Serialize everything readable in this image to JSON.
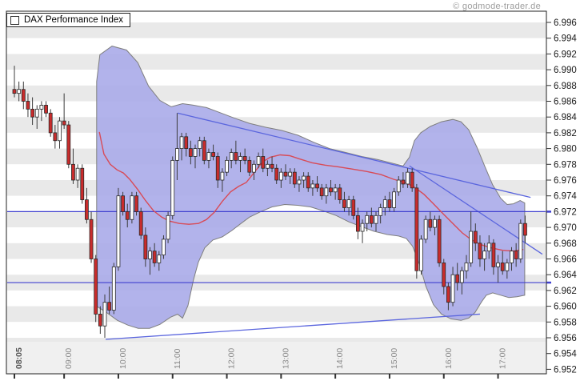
{
  "title": "DAX Performance Index",
  "watermark": "© godmode-trader.de",
  "colors": {
    "candle_up_fill": "#ffffff",
    "candle_down_fill": "#c92c2c",
    "candle_border": "#2a2a2a",
    "wick": "#3c3c3c",
    "band_fill": "#a7a8e8",
    "band_border": "#7f7f7f",
    "ma_line": "#d84b57",
    "blue_line": "#4040d0",
    "trend_line": "#5b66de",
    "stripe_gray": "#e9e9e9",
    "footer_bg": "#f0f0f0",
    "axis_text": "#1a1a1a",
    "time_text": "#8a8a8a",
    "time_text_bold": "#555555",
    "border": "#222222"
  },
  "chart_data": {
    "type": "candlestick",
    "title": "DAX Performance Index",
    "instrument": "DAX Performance Index",
    "x_axis": {
      "first_bar_time": "08:05",
      "interval_minutes": 5,
      "ticks": [
        {
          "index": 0,
          "label": "08:05",
          "bold": true
        },
        {
          "index": 11,
          "label": "09:00",
          "bold": false
        },
        {
          "index": 23,
          "label": "10:00",
          "bold": false
        },
        {
          "index": 35,
          "label": "11:00",
          "bold": false
        },
        {
          "index": 47,
          "label": "12:00",
          "bold": false
        },
        {
          "index": 59,
          "label": "13:00",
          "bold": false
        },
        {
          "index": 71,
          "label": "14:00",
          "bold": false
        },
        {
          "index": 83,
          "label": "15:00",
          "bold": false
        },
        {
          "index": 95,
          "label": "16:00",
          "bold": false
        },
        {
          "index": 107,
          "label": "17:00",
          "bold": false
        }
      ]
    },
    "y_axis": {
      "side": "right",
      "min": 6.952,
      "max": 6.996,
      "step": 0.002,
      "labels": [
        "6.996",
        "6.994",
        "6.992",
        "6.990",
        "6.988",
        "6.986",
        "6.984",
        "6.982",
        "6.980",
        "6.978",
        "6.976",
        "6.974",
        "6.972",
        "6.970",
        "6.968",
        "6.966",
        "6.964",
        "6.962",
        "6.960",
        "6.958",
        "6.956",
        "6.954",
        "6.952"
      ]
    },
    "horizontal_lines": [
      6.972,
      6.963
    ],
    "trendlines": [
      {
        "from": [
          36.1,
          6.9845
        ],
        "to": [
          114.2,
          6.9738
        ]
      },
      {
        "from": [
          87.4,
          6.9778
        ],
        "to": [
          116.8,
          6.9666
        ]
      },
      {
        "from": [
          20.2,
          6.9558
        ],
        "to": [
          103.0,
          6.959
        ]
      }
    ],
    "bollinger_band": {
      "upper": [
        [
          18.2,
          6.9885
        ],
        [
          18.9,
          6.9919
        ],
        [
          21.6,
          6.993
        ],
        [
          24.8,
          6.9925
        ],
        [
          27.3,
          6.9909
        ],
        [
          29.7,
          6.9879
        ],
        [
          32.2,
          6.9861
        ],
        [
          34.7,
          6.9853
        ],
        [
          37.2,
          6.9857
        ],
        [
          39.6,
          6.9855
        ],
        [
          42.5,
          6.9852
        ],
        [
          45.3,
          6.9846
        ],
        [
          48.5,
          6.9839
        ],
        [
          52.0,
          6.9832
        ],
        [
          55.6,
          6.9827
        ],
        [
          59.1,
          6.9823
        ],
        [
          62.7,
          6.9817
        ],
        [
          66.2,
          6.9808
        ],
        [
          69.7,
          6.98
        ],
        [
          73.3,
          6.9795
        ],
        [
          76.8,
          6.979
        ],
        [
          80.4,
          6.9786
        ],
        [
          83.9,
          6.9781
        ],
        [
          86.0,
          6.9778
        ],
        [
          87.4,
          6.9789
        ],
        [
          88.5,
          6.981
        ],
        [
          89.9,
          6.982
        ],
        [
          92.0,
          6.9828
        ],
        [
          94.5,
          6.9834
        ],
        [
          97.0,
          6.9837
        ],
        [
          98.8,
          6.9834
        ],
        [
          100.5,
          6.9824
        ],
        [
          102.3,
          6.9802
        ],
        [
          104.1,
          6.9777
        ],
        [
          105.8,
          6.9754
        ],
        [
          107.6,
          6.9737
        ],
        [
          109.0,
          6.9729
        ],
        [
          110.4,
          6.973
        ],
        [
          111.9,
          6.9734
        ],
        [
          112.9,
          6.9731
        ]
      ],
      "lower": [
        [
          18.2,
          6.96
        ],
        [
          20.4,
          6.9592
        ],
        [
          22.8,
          6.9582
        ],
        [
          25.1,
          6.9576
        ],
        [
          27.4,
          6.9572
        ],
        [
          29.9,
          6.9572
        ],
        [
          32.2,
          6.9577
        ],
        [
          34.5,
          6.9586
        ],
        [
          36.1,
          6.959
        ],
        [
          37.2,
          6.9585
        ],
        [
          38.4,
          6.9601
        ],
        [
          39.6,
          6.9633
        ],
        [
          40.7,
          6.9656
        ],
        [
          42.1,
          6.9674
        ],
        [
          43.9,
          6.9684
        ],
        [
          46.0,
          6.9688
        ],
        [
          48.1,
          6.9696
        ],
        [
          49.9,
          6.9704
        ],
        [
          52.0,
          6.9713
        ],
        [
          54.5,
          6.972
        ],
        [
          57.0,
          6.9726
        ],
        [
          59.8,
          6.9729
        ],
        [
          62.7,
          6.9728
        ],
        [
          65.5,
          6.9726
        ],
        [
          68.3,
          6.9721
        ],
        [
          71.2,
          6.9715
        ],
        [
          74.0,
          6.9707
        ],
        [
          76.8,
          6.9701
        ],
        [
          79.6,
          6.9695
        ],
        [
          82.5,
          6.9691
        ],
        [
          85.0,
          6.9689
        ],
        [
          86.7,
          6.9686
        ],
        [
          88.1,
          6.9676
        ],
        [
          89.6,
          6.9654
        ],
        [
          91.0,
          6.9626
        ],
        [
          92.7,
          6.9602
        ],
        [
          94.5,
          6.959
        ],
        [
          96.6,
          6.9584
        ],
        [
          98.8,
          6.9582
        ],
        [
          100.5,
          6.9585
        ],
        [
          101.9,
          6.9592
        ],
        [
          103.4,
          6.9606
        ],
        [
          104.4,
          6.9614
        ],
        [
          105.8,
          6.9617
        ],
        [
          107.6,
          6.9614
        ],
        [
          109.4,
          6.9611
        ],
        [
          111.2,
          6.9612
        ],
        [
          112.9,
          6.9614
        ]
      ]
    },
    "ma_line": [
      [
        18.8,
        6.9821
      ],
      [
        19.8,
        6.9793
      ],
      [
        21.2,
        6.978
      ],
      [
        22.7,
        6.9773
      ],
      [
        24.1,
        6.9769
      ],
      [
        25.5,
        6.9761
      ],
      [
        27.3,
        6.9748
      ],
      [
        29.0,
        6.9734
      ],
      [
        30.8,
        6.9721
      ],
      [
        32.6,
        6.9713
      ],
      [
        34.3,
        6.9708
      ],
      [
        36.5,
        6.9705
      ],
      [
        38.6,
        6.9704
      ],
      [
        40.7,
        6.9705
      ],
      [
        42.5,
        6.971
      ],
      [
        44.2,
        6.9719
      ],
      [
        46.0,
        6.9733
      ],
      [
        47.8,
        6.9745
      ],
      [
        49.6,
        6.9752
      ],
      [
        51.3,
        6.9757
      ],
      [
        53.1,
        6.977
      ],
      [
        54.9,
        6.9783
      ],
      [
        56.6,
        6.9789
      ],
      [
        58.8,
        6.9792
      ],
      [
        60.9,
        6.9791
      ],
      [
        63.0,
        6.9787
      ],
      [
        65.8,
        6.9782
      ],
      [
        68.7,
        6.9779
      ],
      [
        71.5,
        6.9777
      ],
      [
        74.7,
        6.9774
      ],
      [
        77.9,
        6.9771
      ],
      [
        81.1,
        6.9767
      ],
      [
        83.9,
        6.9761
      ],
      [
        86.4,
        6.9757
      ],
      [
        88.5,
        6.9751
      ],
      [
        90.6,
        6.9742
      ],
      [
        92.7,
        6.973
      ],
      [
        94.9,
        6.9717
      ],
      [
        97.0,
        6.9705
      ],
      [
        99.1,
        6.9693
      ],
      [
        101.2,
        6.9684
      ],
      [
        103.3,
        6.9678
      ],
      [
        105.5,
        6.9674
      ],
      [
        108.0,
        6.9671
      ],
      [
        110.4,
        6.967
      ],
      [
        112.6,
        6.9672
      ]
    ],
    "candles": [
      [
        6.9875,
        6.9905,
        6.9865,
        6.987
      ],
      [
        6.987,
        6.9885,
        6.986,
        6.9875
      ],
      [
        6.9875,
        6.9885,
        6.985,
        6.986
      ],
      [
        6.986,
        6.987,
        6.984,
        6.985
      ],
      [
        6.985,
        6.9865,
        6.983,
        6.984
      ],
      [
        6.984,
        6.9855,
        6.9825,
        6.985
      ],
      [
        6.985,
        6.986,
        6.9835,
        6.9855
      ],
      [
        6.9855,
        6.986,
        6.984,
        6.9845
      ],
      [
        6.9845,
        6.985,
        6.9815,
        6.982
      ],
      [
        6.982,
        6.983,
        6.98,
        6.981
      ],
      [
        6.981,
        6.984,
        6.98,
        6.9835
      ],
      [
        6.9835,
        6.987,
        6.9825,
        6.983
      ],
      [
        6.983,
        6.9835,
        6.9775,
        6.978
      ],
      [
        6.978,
        6.98,
        6.9755,
        6.976
      ],
      [
        6.976,
        6.978,
        6.975,
        6.9775
      ],
      [
        6.9775,
        6.978,
        6.973,
        6.9735
      ],
      [
        6.9735,
        6.975,
        6.9705,
        6.971
      ],
      [
        6.971,
        6.972,
        6.9655,
        6.966
      ],
      [
        6.966,
        6.9665,
        6.958,
        6.959
      ],
      [
        6.959,
        6.96,
        6.9565,
        6.9575
      ],
      [
        6.9575,
        6.9615,
        6.956,
        6.9605
      ],
      [
        6.9605,
        6.9625,
        6.959,
        6.9595
      ],
      [
        6.9595,
        6.9655,
        6.959,
        6.965
      ],
      [
        6.965,
        6.975,
        6.9645,
        6.974
      ],
      [
        6.974,
        6.9745,
        6.9715,
        6.972
      ],
      [
        6.972,
        6.973,
        6.97,
        6.971
      ],
      [
        6.971,
        6.9745,
        6.9705,
        6.974
      ],
      [
        6.974,
        6.9745,
        6.9715,
        6.972
      ],
      [
        6.972,
        6.9725,
        6.9685,
        6.969
      ],
      [
        6.969,
        6.97,
        6.965,
        6.966
      ],
      [
        6.966,
        6.9675,
        6.964,
        6.967
      ],
      [
        6.967,
        6.968,
        6.965,
        6.9655
      ],
      [
        6.9655,
        6.967,
        6.9645,
        6.9665
      ],
      [
        6.9665,
        6.969,
        6.966,
        6.9685
      ],
      [
        6.9685,
        6.972,
        6.968,
        6.9715
      ],
      [
        6.9715,
        6.979,
        6.971,
        6.9785
      ],
      [
        6.9785,
        6.9845,
        6.976,
        6.98
      ],
      [
        6.98,
        6.982,
        6.9785,
        6.9815
      ],
      [
        6.9815,
        6.982,
        6.979,
        6.98
      ],
      [
        6.98,
        6.981,
        6.978,
        6.979
      ],
      [
        6.979,
        6.9805,
        6.9775,
        6.98
      ],
      [
        6.98,
        6.9815,
        6.979,
        6.981
      ],
      [
        6.981,
        6.9815,
        6.978,
        6.9785
      ],
      [
        6.9785,
        6.98,
        6.9775,
        6.9795
      ],
      [
        6.9795,
        6.9805,
        6.9785,
        6.979
      ],
      [
        6.979,
        6.9795,
        6.975,
        6.976
      ],
      [
        6.976,
        6.9775,
        6.9745,
        6.977
      ],
      [
        6.977,
        6.979,
        6.9765,
        6.9785
      ],
      [
        6.9785,
        6.98,
        6.9775,
        6.9795
      ],
      [
        6.9795,
        6.981,
        6.978,
        6.9785
      ],
      [
        6.9785,
        6.9795,
        6.977,
        6.979
      ],
      [
        6.979,
        6.98,
        6.978,
        6.9785
      ],
      [
        6.9785,
        6.979,
        6.9765,
        6.977
      ],
      [
        6.977,
        6.9785,
        6.976,
        6.978
      ],
      [
        6.978,
        6.9795,
        6.9775,
        6.979
      ],
      [
        6.979,
        6.98,
        6.977,
        6.9775
      ],
      [
        6.9775,
        6.9785,
        6.9765,
        6.978
      ],
      [
        6.978,
        6.979,
        6.977,
        6.9775
      ],
      [
        6.9775,
        6.978,
        6.9755,
        6.976
      ],
      [
        6.976,
        6.9775,
        6.975,
        6.977
      ],
      [
        6.977,
        6.978,
        6.976,
        6.9765
      ],
      [
        6.9765,
        6.9775,
        6.9755,
        6.977
      ],
      [
        6.977,
        6.9775,
        6.975,
        6.9755
      ],
      [
        6.9755,
        6.9765,
        6.9745,
        6.976
      ],
      [
        6.976,
        6.977,
        6.975,
        6.9765
      ],
      [
        6.9765,
        6.977,
        6.9745,
        6.975
      ],
      [
        6.975,
        6.976,
        6.974,
        6.9755
      ],
      [
        6.9755,
        6.9765,
        6.9745,
        6.975
      ],
      [
        6.975,
        6.9755,
        6.9735,
        6.974
      ],
      [
        6.974,
        6.9755,
        6.973,
        6.975
      ],
      [
        6.975,
        6.976,
        6.974,
        6.9745
      ],
      [
        6.9745,
        6.9755,
        6.9735,
        6.975
      ],
      [
        6.975,
        6.9755,
        6.973,
        6.9735
      ],
      [
        6.9735,
        6.9745,
        6.972,
        6.9725
      ],
      [
        6.9725,
        6.974,
        6.9715,
        6.9735
      ],
      [
        6.9735,
        6.974,
        6.971,
        6.9715
      ],
      [
        6.9715,
        6.9725,
        6.9685,
        6.9695
      ],
      [
        6.9695,
        6.971,
        6.968,
        6.9705
      ],
      [
        6.9705,
        6.972,
        6.9695,
        6.9715
      ],
      [
        6.9715,
        6.9725,
        6.97,
        6.9705
      ],
      [
        6.9705,
        6.972,
        6.9695,
        6.9715
      ],
      [
        6.9715,
        6.973,
        6.9705,
        6.9725
      ],
      [
        6.9725,
        6.974,
        6.9715,
        6.9735
      ],
      [
        6.9735,
        6.9745,
        6.972,
        6.9725
      ],
      [
        6.9725,
        6.975,
        6.972,
        6.9745
      ],
      [
        6.9745,
        6.9765,
        6.974,
        6.976
      ],
      [
        6.976,
        6.977,
        6.975,
        6.9755
      ],
      [
        6.9755,
        6.9775,
        6.975,
        6.977
      ],
      [
        6.977,
        6.9775,
        6.9745,
        6.975
      ],
      [
        6.975,
        6.9755,
        6.9635,
        6.9645
      ],
      [
        6.9645,
        6.969,
        6.964,
        6.9685
      ],
      [
        6.9685,
        6.9715,
        6.968,
        6.971
      ],
      [
        6.971,
        6.972,
        6.9695,
        6.97
      ],
      [
        6.97,
        6.9715,
        6.969,
        6.971
      ],
      [
        6.971,
        6.9715,
        6.965,
        6.9655
      ],
      [
        6.9655,
        6.966,
        6.9615,
        6.9625
      ],
      [
        6.9625,
        6.963,
        6.9595,
        6.9605
      ],
      [
        6.9605,
        6.965,
        6.96,
        6.964
      ],
      [
        6.964,
        6.9655,
        6.962,
        6.963
      ],
      [
        6.963,
        6.965,
        6.9615,
        6.9645
      ],
      [
        6.9645,
        6.9665,
        6.9635,
        6.9655
      ],
      [
        6.9655,
        6.972,
        6.965,
        6.9695
      ],
      [
        6.9695,
        6.9705,
        6.967,
        6.968
      ],
      [
        6.968,
        6.969,
        6.965,
        6.966
      ],
      [
        6.966,
        6.968,
        6.9645,
        6.967
      ],
      [
        6.967,
        6.969,
        6.966,
        6.968
      ],
      [
        6.968,
        6.9685,
        6.964,
        6.965
      ],
      [
        6.965,
        6.9665,
        6.963,
        6.9655
      ],
      [
        6.9655,
        6.967,
        6.964,
        6.9645
      ],
      [
        6.9645,
        6.966,
        6.9635,
        6.9655
      ],
      [
        6.9655,
        6.9675,
        6.9645,
        6.967
      ],
      [
        6.967,
        6.968,
        6.965,
        6.966
      ],
      [
        6.966,
        6.971,
        6.9655,
        6.9705
      ],
      [
        6.9705,
        6.9715,
        6.968,
        6.969
      ]
    ]
  }
}
